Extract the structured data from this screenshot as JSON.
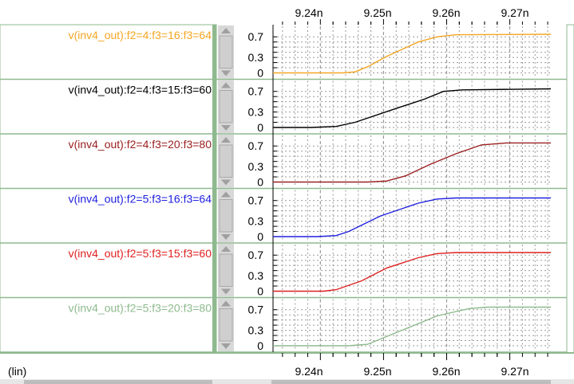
{
  "x_axis": {
    "ticks": [
      "9.24n",
      "9.25n",
      "9.26n",
      "9.27n"
    ],
    "scale_label": "(lin)"
  },
  "y_ticks": [
    "0.7",
    "0.3",
    "0"
  ],
  "colors": {
    "frame_green": "#8fb98f",
    "scroll_gray": "#cfcfcf",
    "grid": "#9a9a9a"
  },
  "chart_data": {
    "type": "line",
    "xlim": [
      9.2325,
      9.2765
    ],
    "ylim": [
      0,
      0.75
    ],
    "x_tick_values": [
      9.24,
      9.25,
      9.26,
      9.27
    ],
    "y_tick_values": [
      0.7,
      0.3,
      0
    ],
    "series": [
      {
        "name": "v(inv4_out):f2=4:f3=16:f3=64",
        "color": "#f5a623",
        "x": [
          9.2325,
          9.2435,
          9.2455,
          9.2475,
          9.2505,
          9.2555,
          9.2585,
          9.2615,
          9.2765
        ],
        "y": [
          0.0,
          0.0,
          0.02,
          0.12,
          0.32,
          0.6,
          0.7,
          0.74,
          0.75
        ]
      },
      {
        "name": "v(inv4_out):f2=4:f3=15:f3=60",
        "color": "#000000",
        "x": [
          9.2325,
          9.2385,
          9.2425,
          9.2455,
          9.2515,
          9.2565,
          9.2595,
          9.2625,
          9.2765
        ],
        "y": [
          0.0,
          0.0,
          0.02,
          0.1,
          0.35,
          0.55,
          0.7,
          0.73,
          0.75
        ]
      },
      {
        "name": "v(inv4_out):f2=4:f3=20:f3=80",
        "color": "#9b2020",
        "x": [
          9.2325,
          9.2475,
          9.2505,
          9.2535,
          9.2575,
          9.2615,
          9.2655,
          9.2695,
          9.2765
        ],
        "y": [
          0.0,
          0.0,
          0.02,
          0.12,
          0.35,
          0.55,
          0.72,
          0.76,
          0.76
        ]
      },
      {
        "name": "v(inv4_out):f2=5:f3=16:f3=64",
        "color": "#2020e0",
        "x": [
          9.2325,
          9.2395,
          9.2425,
          9.2445,
          9.2495,
          9.2555,
          9.2585,
          9.2615,
          9.2765
        ],
        "y": [
          0.0,
          0.0,
          0.02,
          0.1,
          0.4,
          0.65,
          0.73,
          0.75,
          0.75
        ]
      },
      {
        "name": "v(inv4_out):f2=5:f3=15:f3=60",
        "color": "#e02020",
        "x": [
          9.2325,
          9.2405,
          9.2425,
          9.2465,
          9.2505,
          9.2555,
          9.2585,
          9.2615,
          9.2765
        ],
        "y": [
          0.0,
          0.0,
          0.03,
          0.2,
          0.45,
          0.65,
          0.73,
          0.75,
          0.75
        ]
      },
      {
        "name": "v(inv4_out):f2=5:f3=20:f3=80",
        "color": "#8dba8d",
        "x": [
          9.2325,
          9.2445,
          9.2475,
          9.2525,
          9.2585,
          9.2635,
          9.2665,
          9.2765
        ],
        "y": [
          0.0,
          0.0,
          0.03,
          0.28,
          0.58,
          0.72,
          0.75,
          0.75
        ]
      }
    ]
  }
}
